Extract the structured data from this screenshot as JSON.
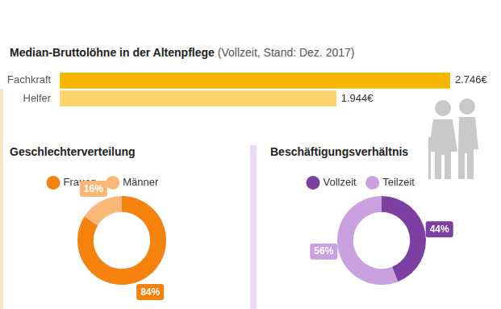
{
  "chart_data": [
    {
      "type": "bar",
      "title": "Median-Bruttolöhne in der Altenpflege",
      "subtitle": "(Vollzeit, Stand: Dez. 2017)",
      "orientation": "horizontal",
      "categories": [
        "Fachkraft",
        "Helfer"
      ],
      "values": [
        2746,
        1944
      ],
      "value_labels": [
        "2.746€",
        "1.944€"
      ],
      "colors": [
        "#f8b500",
        "#fad46c"
      ],
      "xlim": [
        0,
        2746
      ],
      "data_labels": true,
      "tick_labels": "y",
      "grid": false
    },
    {
      "type": "doughnut",
      "title": "Geschlechterverteilung",
      "categories": [
        "Frauen",
        "Männer"
      ],
      "values": [
        84,
        16
      ],
      "value_labels": [
        "84%",
        "16%"
      ],
      "colors": [
        "#f5820c",
        "#f9b878"
      ],
      "legend": "top-left",
      "data_labels": true
    },
    {
      "type": "doughnut",
      "title": "Beschäftigungsverhältnis",
      "categories": [
        "Vollzeit",
        "Teilzeit"
      ],
      "values": [
        44,
        56
      ],
      "value_labels": [
        "44%",
        "56%"
      ],
      "colors": [
        "#7d40a2",
        "#c9a1de"
      ],
      "legend": "top-left",
      "data_labels": true
    }
  ]
}
